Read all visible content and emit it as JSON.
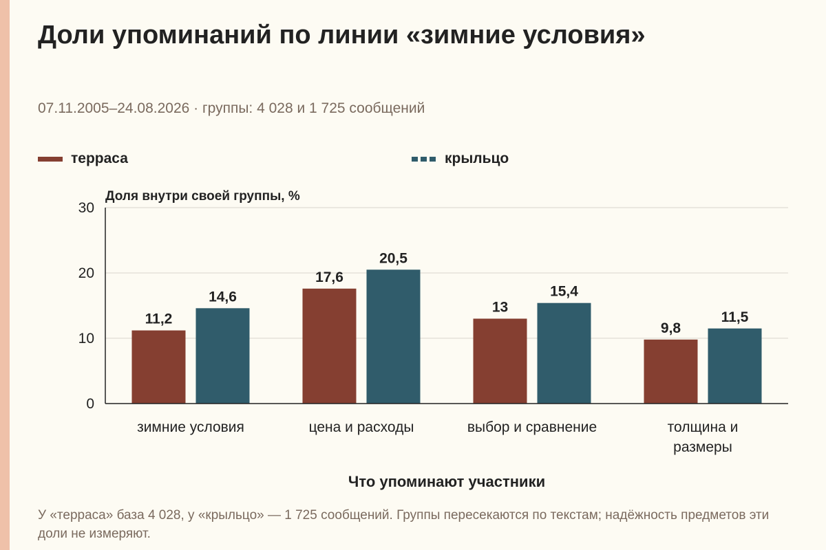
{
  "title": "Доли упоминаний по линии «зимние условия»",
  "subtitle": "07.11.2005–24.08.2026 · группы: 4 028 и 1 725 сообщений",
  "footnote": "У «терраса» база 4 028, у «крыльцо» — 1 725 сообщений. Группы пересекаются по текстам; надёжность предметов эти доли не измеряют.",
  "colors": {
    "terrace": "#853f31",
    "porch": "#305c6b",
    "accent": "#efc1a9"
  },
  "chart_data": {
    "type": "bar",
    "title": "Доли упоминаний по линии «зимние условия»",
    "subtitle": "07.11.2005–24.08.2026 · группы: 4 028 и 1 725 сообщений",
    "xlabel": "Что упоминают участники",
    "ylabel": "Доля внутри своей группы, %",
    "ylim": [
      0,
      30
    ],
    "yticks": [
      0,
      10,
      20,
      30
    ],
    "grid": true,
    "legend_position": "top-left",
    "categories": [
      [
        "зимние условия"
      ],
      [
        "цена и расходы"
      ],
      [
        "выбор и сравнение"
      ],
      [
        "толщина и",
        "размеры"
      ]
    ],
    "series": [
      {
        "name": "терраса",
        "color": "#853f31",
        "labels": [
          "11,2",
          "17,6",
          "13",
          "9,8"
        ],
        "values": [
          11.2,
          17.6,
          13,
          9.8
        ]
      },
      {
        "name": "крыльцо",
        "color": "#305c6b",
        "labels": [
          "14,6",
          "20,5",
          "15,4",
          "11,5"
        ],
        "values": [
          14.6,
          20.5,
          15.4,
          11.5
        ]
      }
    ]
  }
}
